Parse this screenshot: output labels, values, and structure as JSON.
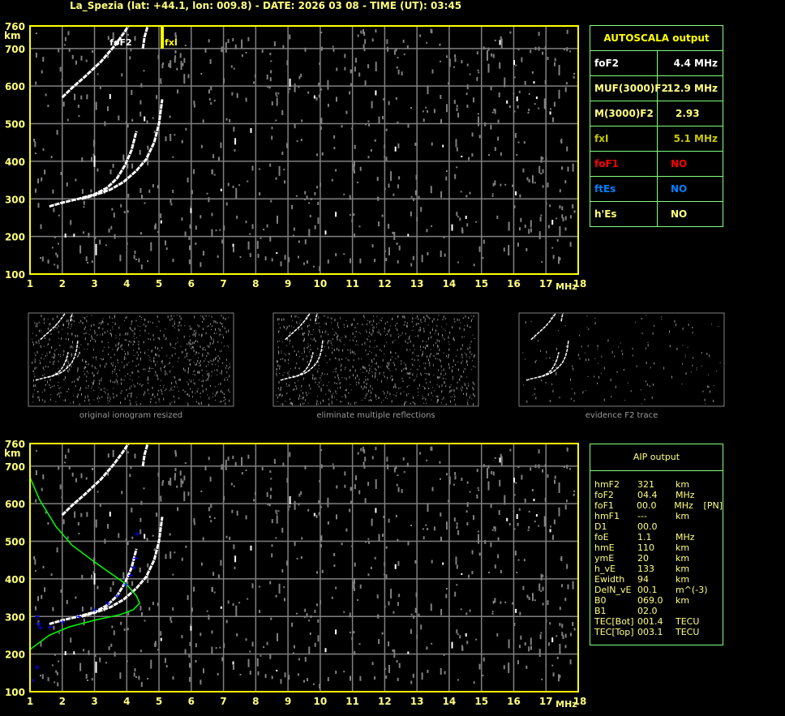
{
  "header": {
    "title": "La_Spezia (lat: +44.1, lon: 009.8) - DATE: 2026 03 08 - TIME (UT): 03:45"
  },
  "colors": {
    "axis": "#ffff00",
    "axis_labels": "#ffff80",
    "grid": "#808080",
    "trace": "#ffffff",
    "noise": "#808080",
    "profile": "#00ff00",
    "aip_points": "#0000ff",
    "table_border": "#80ff80"
  },
  "chart_data": [
    {
      "type": "scatter",
      "title": "",
      "xlabel": "MHz",
      "ylabel": "km",
      "xlim": [
        1,
        18
      ],
      "ylim": [
        100,
        760
      ],
      "xticks": [
        "1",
        "2",
        "3",
        "4",
        "5",
        "6",
        "7",
        "8",
        "9",
        "10",
        "11",
        "12",
        "13",
        "14",
        "15",
        "16",
        "17",
        "18"
      ],
      "yticks": [
        "100",
        "200",
        "300",
        "400",
        "500",
        "600",
        "700",
        "760"
      ],
      "grid": true,
      "annotations": [
        {
          "label": "foF2",
          "x": 4.4
        },
        {
          "label": "fxI",
          "x": 5.1
        }
      ],
      "series": [
        {
          "kind": "o_trace",
          "points": [
            [
              1.6,
              280
            ],
            [
              2.0,
              290
            ],
            [
              2.5,
              300
            ],
            [
              3.0,
              312
            ],
            [
              3.4,
              330
            ],
            [
              3.7,
              355
            ],
            [
              3.95,
              390
            ],
            [
              4.15,
              430
            ],
            [
              4.3,
              480
            ]
          ]
        },
        {
          "kind": "x_trace",
          "points": [
            [
              2.6,
              300
            ],
            [
              3.0,
              310
            ],
            [
              3.5,
              325
            ],
            [
              3.9,
              345
            ],
            [
              4.3,
              375
            ],
            [
              4.6,
              405
            ],
            [
              4.85,
              450
            ],
            [
              5.0,
              500
            ],
            [
              5.1,
              565
            ]
          ]
        },
        {
          "kind": "second_hop",
          "points": [
            [
              2.0,
              570
            ],
            [
              2.3,
              595
            ],
            [
              2.7,
              625
            ],
            [
              3.2,
              665
            ],
            [
              3.6,
              705
            ],
            [
              3.9,
              740
            ],
            [
              4.05,
              760
            ]
          ]
        },
        {
          "kind": "second_hop_x",
          "points": [
            [
              4.5,
              700
            ],
            [
              4.55,
              730
            ],
            [
              4.65,
              760
            ]
          ]
        }
      ]
    },
    {
      "type": "line",
      "title": "",
      "xlabel": "MHz",
      "ylabel": "km",
      "xlim": [
        1,
        18
      ],
      "ylim": [
        100,
        760
      ],
      "grid": true,
      "series": [
        {
          "kind": "profile",
          "points": [
            [
              1.0,
              670
            ],
            [
              1.3,
              610
            ],
            [
              1.8,
              540
            ],
            [
              2.3,
              490
            ],
            [
              3.0,
              445
            ],
            [
              3.5,
              415
            ],
            [
              4.0,
              385
            ],
            [
              4.3,
              355
            ],
            [
              4.4,
              335
            ],
            [
              4.2,
              318
            ],
            [
              3.8,
              305
            ],
            [
              3.0,
              290
            ],
            [
              2.2,
              272
            ],
            [
              1.6,
              250
            ],
            [
              1.2,
              225
            ],
            [
              1.0,
              212
            ]
          ]
        },
        {
          "kind": "aip_points",
          "points": [
            [
              1.2,
              300
            ],
            [
              1.25,
              280
            ],
            [
              1.3,
              270
            ],
            [
              1.6,
              272
            ],
            [
              2.0,
              285
            ],
            [
              2.5,
              300
            ],
            [
              3.0,
              318
            ],
            [
              3.4,
              335
            ],
            [
              3.7,
              355
            ],
            [
              3.95,
              385
            ],
            [
              4.1,
              410
            ],
            [
              4.2,
              430
            ],
            [
              4.25,
              455
            ],
            [
              4.3,
              520
            ],
            [
              1.2,
              165
            ],
            [
              1.05,
              130
            ]
          ]
        }
      ]
    }
  ],
  "thumbnails": [
    {
      "caption": "original ionogram resized"
    },
    {
      "caption": "eliminate multiple reflections"
    },
    {
      "caption": "evidence F2 trace"
    }
  ],
  "autoscala": {
    "title": "AUTOSCALA output",
    "rows": [
      {
        "label": "foF2",
        "value": "4.4 MHz",
        "color": "#ffffff"
      },
      {
        "label": "MUF(3000)F2",
        "value": "12.9 MHz",
        "color": "#ffff80"
      },
      {
        "label": "M(3000)F2",
        "value": "2.93",
        "color": "#ffff80"
      },
      {
        "label": "fxI",
        "value": "5.1 MHz",
        "color": "#c8c800"
      },
      {
        "label": "foF1",
        "value": "NO",
        "color": "#ff0000"
      },
      {
        "label": "ftEs",
        "value": "NO",
        "color": "#0080ff"
      },
      {
        "label": "h'Es",
        "value": "NO",
        "color": "#ffff80"
      }
    ]
  },
  "aip": {
    "title": "AIP output",
    "rows": [
      [
        "hmF2",
        "321",
        "km",
        ""
      ],
      [
        "foF2",
        "04.4",
        "MHz",
        ""
      ],
      [
        "foF1",
        "00.0",
        "MHz",
        "[PN]"
      ],
      [
        "hmF1",
        "---",
        "km",
        ""
      ],
      [
        "D1",
        "00.0",
        "",
        ""
      ],
      [
        "foE",
        "1.1",
        "MHz",
        ""
      ],
      [
        "hmE",
        "110",
        "km",
        ""
      ],
      [
        "ymE",
        "20",
        "km",
        ""
      ],
      [
        "h_vE",
        "133",
        "km",
        ""
      ],
      [
        "Ewidth",
        "94",
        "km",
        ""
      ],
      [
        "DelN_vE",
        "00.1",
        "m^(-3)",
        ""
      ],
      [
        "B0",
        "069.0",
        "km",
        ""
      ],
      [
        "B1",
        "02.0",
        "",
        ""
      ],
      [
        "TEC[Bot]",
        "001.4",
        "TECU",
        ""
      ],
      [
        "TEC[Top]",
        "003.1",
        "TECU",
        ""
      ]
    ]
  }
}
